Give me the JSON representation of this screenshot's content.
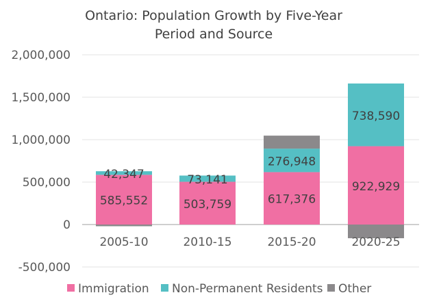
{
  "chart_data": {
    "type": "bar",
    "stacked": true,
    "title": "Ontario: Population Growth by Five-Year Period and Source",
    "title_lines": [
      "Ontario: Population Growth by Five-Year",
      "Period and Source"
    ],
    "categories": [
      "2005-10",
      "2010-15",
      "2015-20",
      "2020-25"
    ],
    "series": [
      {
        "name": "Immigration",
        "color": "#F06FA3",
        "values": [
          585552,
          503759,
          617376,
          922929
        ],
        "labels": [
          "585,552",
          "503,759",
          "617,376",
          "922,929"
        ]
      },
      {
        "name": "Non-Permanent Residents",
        "color": "#55BFC4",
        "values": [
          42347,
          73141,
          276948,
          738590
        ],
        "labels": [
          "42,347",
          "73,141",
          "276,948",
          "738,590"
        ]
      },
      {
        "name": "Other",
        "color": "#8B898B",
        "values": [
          -20000,
          0,
          153000,
          -161000
        ],
        "labels": null
      }
    ],
    "ylim": [
      -500000,
      2000000
    ],
    "yticks": [
      -500000,
      0,
      500000,
      1000000,
      1500000,
      2000000
    ],
    "ytick_labels": [
      "-500,000",
      "0",
      "500,000",
      "1,000,000",
      "1,500,000",
      "2,000,000"
    ],
    "xlabel": "",
    "ylabel": "",
    "grid": true,
    "legend_position": "bottom"
  }
}
